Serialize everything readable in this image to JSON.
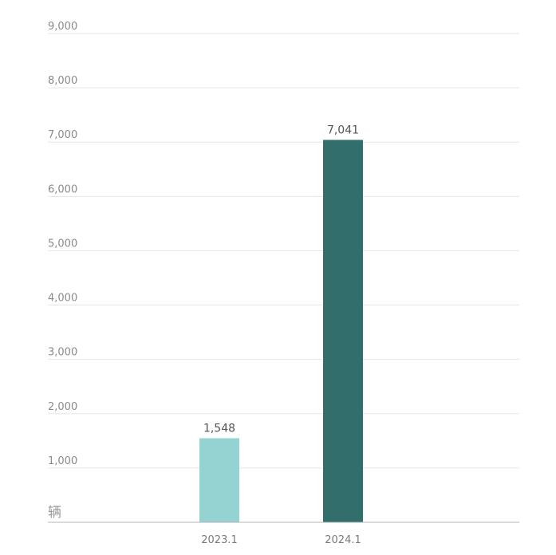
{
  "chart_data": {
    "type": "bar",
    "categories": [
      "2023.1",
      "2024.1"
    ],
    "values": [
      1548,
      7041
    ],
    "value_labels": [
      "1,548",
      "7,041"
    ],
    "ylim": [
      0,
      9000
    ],
    "yticks": [
      0,
      1000,
      2000,
      3000,
      4000,
      5000,
      6000,
      7000,
      8000,
      9000
    ],
    "ytick_labels": [
      "",
      "1,000",
      "2,000",
      "3,000",
      "4,000",
      "5,000",
      "6,000",
      "7,000",
      "8,000",
      "9,000"
    ],
    "unit_label": "辆",
    "grid": true,
    "bar_colors": [
      "#94d3d2",
      "#326e6c"
    ]
  }
}
